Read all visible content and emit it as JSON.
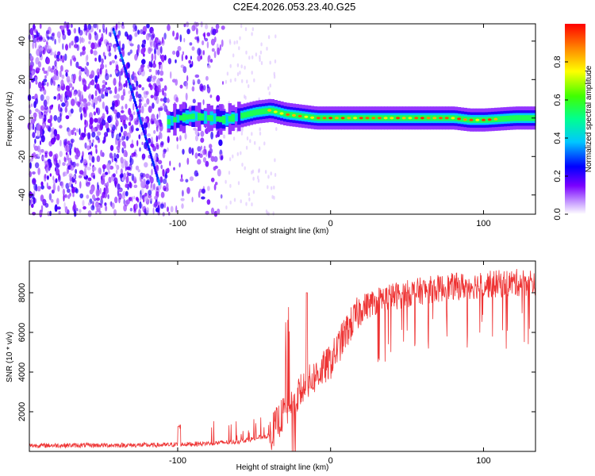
{
  "title": "C2E4.2026.053.23.40.G25",
  "colors": {
    "snr_line": "#ee3333",
    "speckle": "#8a2be2",
    "axis": "#000000"
  },
  "chart_data": [
    {
      "id": "spectrogram",
      "type": "heatmap",
      "xlabel": "Height of straight line (km)",
      "ylabel": "Frequency (Hz)",
      "xlim": [
        -197,
        134
      ],
      "ylim": [
        -50,
        49
      ],
      "xticks": [
        -100,
        0,
        100
      ],
      "yticks": [
        -40,
        -20,
        0,
        20,
        40
      ],
      "colorbar": {
        "label": "Normalized spectral amplitude",
        "range": [
          0,
          1
        ],
        "ticks": [
          "0.0",
          "0.2",
          "0.4",
          "0.6",
          "0.8"
        ],
        "tick_values": [
          0,
          0.2,
          0.4,
          0.6,
          0.8
        ]
      },
      "ridge": {
        "description_points_x": [
          -107,
          -100,
          -90,
          -80,
          -70,
          -60,
          -50,
          -40,
          -30,
          -20,
          -10,
          0,
          20,
          40,
          60,
          80,
          90,
          100,
          120,
          134
        ],
        "description_points_y": [
          -2,
          0,
          1,
          0,
          -1,
          1,
          3,
          4,
          2,
          1,
          0,
          0,
          0,
          0,
          0,
          0,
          -1,
          -1,
          0,
          0
        ]
      }
    },
    {
      "id": "snr",
      "type": "line",
      "xlabel": "Height of straight line (km)",
      "ylabel": "SNR (10 * v/v)",
      "xlim": [
        -197,
        134
      ],
      "ylim": [
        0,
        9600
      ],
      "xticks": [
        -100,
        0,
        100
      ],
      "yticks": [
        2000,
        4000,
        6000,
        8000
      ],
      "envelope": {
        "x": [
          -197,
          -110,
          -100,
          -80,
          -60,
          -40,
          -30,
          -20,
          -10,
          0,
          10,
          20,
          30,
          40,
          60,
          80,
          100,
          120,
          134
        ],
        "y": [
          300,
          320,
          350,
          400,
          500,
          800,
          2000,
          3000,
          3800,
          4500,
          6000,
          7200,
          7600,
          7800,
          8100,
          8300,
          8400,
          8500,
          8550
        ]
      }
    }
  ]
}
